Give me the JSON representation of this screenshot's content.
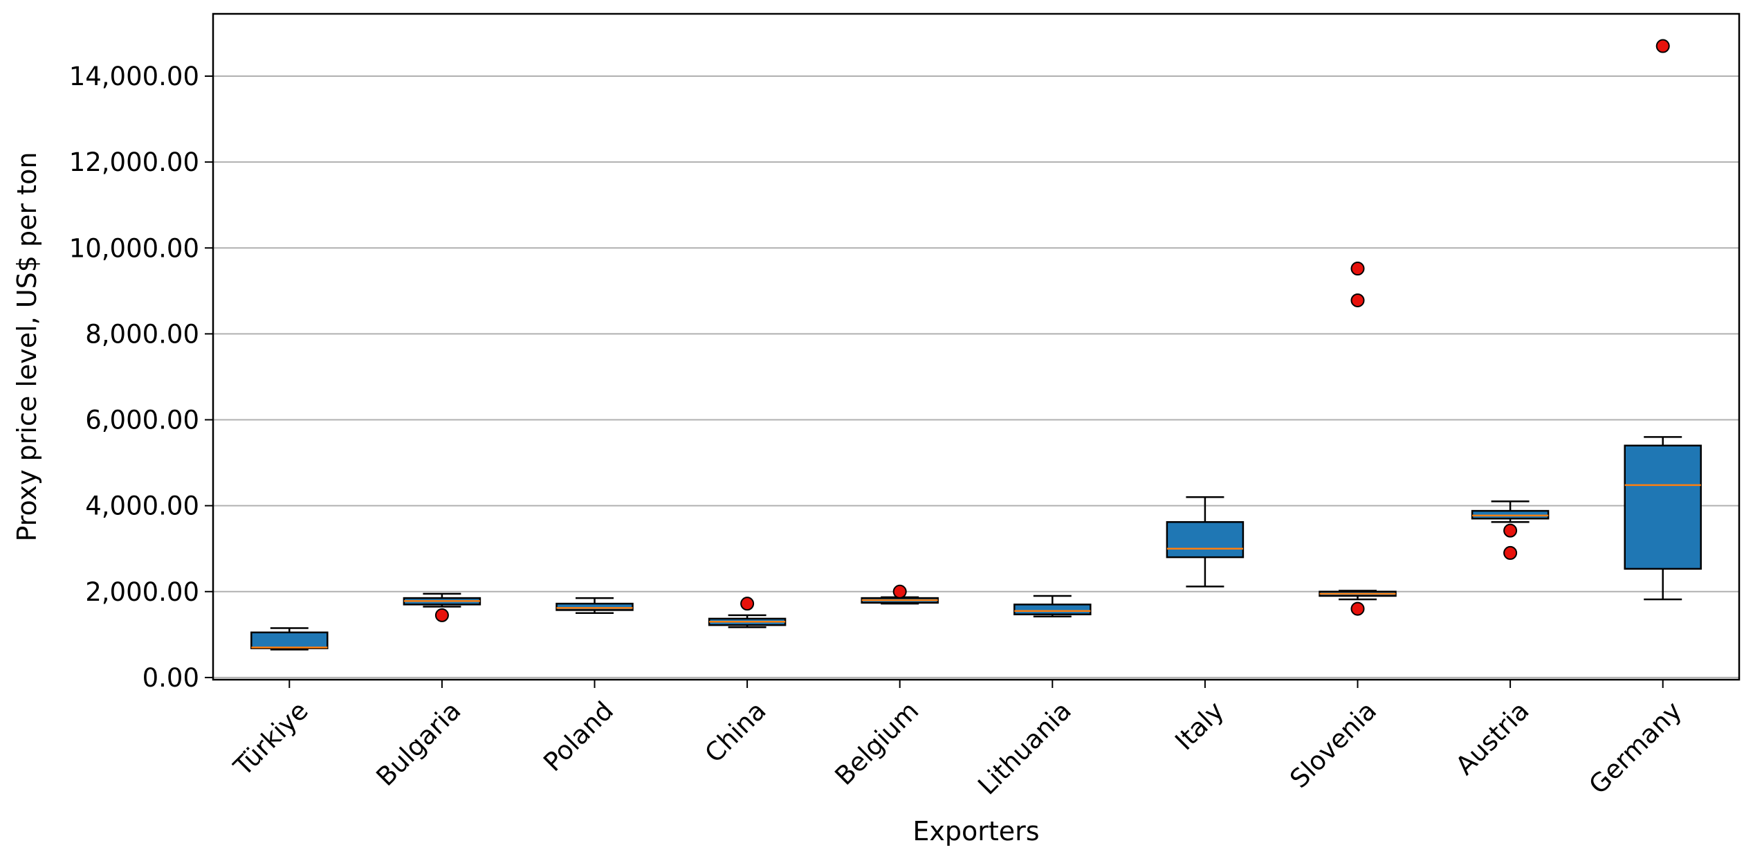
{
  "chart_data": {
    "type": "boxplot",
    "title": "",
    "xlabel": "Exporters",
    "ylabel": "Proxy price level, US$ per ton",
    "ylim": [
      -50,
      15450
    ],
    "yticks": [
      0,
      2000,
      4000,
      6000,
      8000,
      10000,
      12000,
      14000
    ],
    "ytick_labels": [
      "0.00",
      "2,000.00",
      "4,000.00",
      "6,000.00",
      "8,000.00",
      "10,000.00",
      "12,000.00",
      "14,000.00"
    ],
    "grid": "horizontal",
    "legend": "none",
    "categories": [
      "Türkiye",
      "Bulgaria",
      "Poland",
      "China",
      "Belgium",
      "Lithuania",
      "Italy",
      "Slovenia",
      "Austria",
      "Germany"
    ],
    "boxes": [
      {
        "whisker_low": 650,
        "q1": 680,
        "median": 700,
        "q3": 1050,
        "whisker_high": 1150,
        "outliers": []
      },
      {
        "whisker_low": 1650,
        "q1": 1700,
        "median": 1780,
        "q3": 1850,
        "whisker_high": 1950,
        "outliers": [
          1450
        ]
      },
      {
        "whisker_low": 1500,
        "q1": 1570,
        "median": 1620,
        "q3": 1720,
        "whisker_high": 1850,
        "outliers": []
      },
      {
        "whisker_low": 1170,
        "q1": 1220,
        "median": 1300,
        "q3": 1370,
        "whisker_high": 1450,
        "outliers": [
          1720
        ]
      },
      {
        "whisker_low": 1720,
        "q1": 1740,
        "median": 1800,
        "q3": 1850,
        "whisker_high": 1870,
        "outliers": [
          2000
        ]
      },
      {
        "whisker_low": 1420,
        "q1": 1470,
        "median": 1550,
        "q3": 1700,
        "whisker_high": 1900,
        "outliers": []
      },
      {
        "whisker_low": 2120,
        "q1": 2800,
        "median": 3000,
        "q3": 3620,
        "whisker_high": 4200,
        "outliers": []
      },
      {
        "whisker_low": 1820,
        "q1": 1900,
        "median": 1950,
        "q3": 2000,
        "whisker_high": 2020,
        "outliers": [
          9520,
          8780,
          1600
        ]
      },
      {
        "whisker_low": 3620,
        "q1": 3700,
        "median": 3770,
        "q3": 3880,
        "whisker_high": 4100,
        "outliers": [
          3420,
          2900
        ]
      },
      {
        "whisker_low": 1820,
        "q1": 2530,
        "median": 4480,
        "q3": 5400,
        "whisker_high": 5600,
        "outliers": [
          14700
        ]
      }
    ],
    "colors": {
      "box_fill": "#1f77b4",
      "median": "#ff7f0e",
      "outlier_fill": "#e8120c",
      "grid": "#b0b0b0",
      "edge": "#000000"
    }
  }
}
